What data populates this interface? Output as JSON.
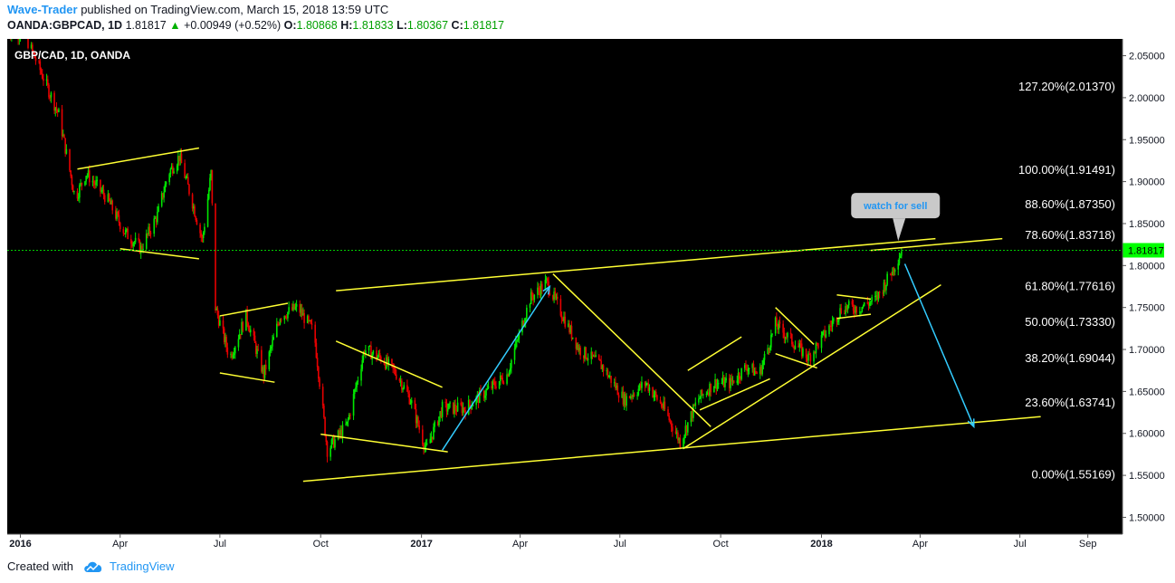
{
  "header": {
    "author": "Wave-Trader",
    "published_text": "published on TradingView.com, March 15, 2018 13:59 UTC",
    "symbol": "OANDA:GBPCAD, 1D",
    "last": "1.81817",
    "change": "+0.00949 (+0.52%)",
    "o_label": "O:",
    "o": "1.80868",
    "h_label": "H:",
    "h": "1.81833",
    "l_label": "L:",
    "l": "1.80367",
    "c_label": "C:",
    "c": "1.81817"
  },
  "chart_title": "GBP/CAD, 1D, OANDA",
  "footer": {
    "created_with": "Created with",
    "brand": "TradingView"
  },
  "colors": {
    "background": "#000000",
    "up": "#00e600",
    "down": "#e60000",
    "trendline": "#ffff33",
    "arrow": "#33ccff",
    "price_tag": "#00ff00"
  },
  "chart_data": {
    "type": "candlestick",
    "title": "GBP/CAD, 1D, OANDA",
    "y_ticks": [
      "2.05000",
      "2.00000",
      "1.95000",
      "1.90000",
      "1.85000",
      "1.80000",
      "1.75000",
      "1.70000",
      "1.65000",
      "1.60000",
      "1.55000",
      "1.50000"
    ],
    "ylim": [
      1.48,
      2.07
    ],
    "x_ticks": [
      {
        "label": "2016",
        "date": "2016-01-01",
        "bold": true
      },
      {
        "label": "Apr",
        "date": "2016-04-01"
      },
      {
        "label": "Jul",
        "date": "2016-07-01"
      },
      {
        "label": "Oct",
        "date": "2016-10-01"
      },
      {
        "label": "2017",
        "date": "2017-01-01",
        "bold": true
      },
      {
        "label": "Apr",
        "date": "2017-04-01"
      },
      {
        "label": "Jul",
        "date": "2017-07-01"
      },
      {
        "label": "Oct",
        "date": "2017-10-01"
      },
      {
        "label": "2018",
        "date": "2018-01-01",
        "bold": true
      },
      {
        "label": "Apr",
        "date": "2018-04-01"
      },
      {
        "label": "Jul",
        "date": "2018-07-01"
      },
      {
        "label": "Sep",
        "date": "2018-09-01"
      }
    ],
    "xlim": [
      "2015-12-20",
      "2018-10-01"
    ],
    "last_price": {
      "value": 1.81817,
      "label": "1.81817"
    },
    "fib_levels": [
      {
        "label": "127.20%(2.01370)",
        "value": 2.0137
      },
      {
        "label": "100.00%(1.91491)",
        "value": 1.91491
      },
      {
        "label": "88.60%(1.87350)",
        "value": 1.8735
      },
      {
        "label": "78.60%(1.83718)",
        "value": 1.83718
      },
      {
        "label": "61.80%(1.77616)",
        "value": 1.77616
      },
      {
        "label": "50.00%(1.73330)",
        "value": 1.7333
      },
      {
        "label": "38.20%(1.69044)",
        "value": 1.69044
      },
      {
        "label": "23.60%(1.63741)",
        "value": 1.63741
      },
      {
        "label": "0.00%(1.55169)",
        "value": 1.55169
      }
    ],
    "price_path": [
      [
        "2015-12-20",
        2.08
      ],
      [
        "2016-01-05",
        2.075
      ],
      [
        "2016-01-20",
        2.03
      ],
      [
        "2016-02-05",
        1.98
      ],
      [
        "2016-02-20",
        1.88
      ],
      [
        "2016-03-01",
        1.91
      ],
      [
        "2016-03-20",
        1.88
      ],
      [
        "2016-04-05",
        1.84
      ],
      [
        "2016-04-20",
        1.82
      ],
      [
        "2016-05-05",
        1.86
      ],
      [
        "2016-05-15",
        1.91
      ],
      [
        "2016-05-25",
        1.93
      ],
      [
        "2016-06-05",
        1.88
      ],
      [
        "2016-06-15",
        1.83
      ],
      [
        "2016-06-23",
        1.91
      ],
      [
        "2016-06-27",
        1.75
      ],
      [
        "2016-07-10",
        1.69
      ],
      [
        "2016-07-25",
        1.74
      ],
      [
        "2016-08-10",
        1.67
      ],
      [
        "2016-08-25",
        1.74
      ],
      [
        "2016-09-10",
        1.75
      ],
      [
        "2016-09-25",
        1.72
      ],
      [
        "2016-10-07",
        1.58
      ],
      [
        "2016-10-25",
        1.61
      ],
      [
        "2016-11-10",
        1.7
      ],
      [
        "2016-11-25",
        1.69
      ],
      [
        "2016-12-10",
        1.67
      ],
      [
        "2016-12-22",
        1.64
      ],
      [
        "2017-01-05",
        1.58
      ],
      [
        "2017-01-20",
        1.63
      ],
      [
        "2017-02-10",
        1.63
      ],
      [
        "2017-03-01",
        1.65
      ],
      [
        "2017-03-20",
        1.67
      ],
      [
        "2017-04-10",
        1.76
      ],
      [
        "2017-04-25",
        1.78
      ],
      [
        "2017-05-10",
        1.74
      ],
      [
        "2017-05-25",
        1.7
      ],
      [
        "2017-06-15",
        1.68
      ],
      [
        "2017-07-05",
        1.64
      ],
      [
        "2017-07-25",
        1.66
      ],
      [
        "2017-08-10",
        1.63
      ],
      [
        "2017-08-25",
        1.59
      ],
      [
        "2017-09-10",
        1.64
      ],
      [
        "2017-09-25",
        1.66
      ],
      [
        "2017-10-10",
        1.66
      ],
      [
        "2017-10-25",
        1.68
      ],
      [
        "2017-11-05",
        1.67
      ],
      [
        "2017-11-20",
        1.73
      ],
      [
        "2017-12-05",
        1.71
      ],
      [
        "2017-12-20",
        1.69
      ],
      [
        "2018-01-05",
        1.72
      ],
      [
        "2018-01-20",
        1.75
      ],
      [
        "2018-02-05",
        1.75
      ],
      [
        "2018-02-20",
        1.76
      ],
      [
        "2018-03-05",
        1.79
      ],
      [
        "2018-03-15",
        1.818
      ]
    ],
    "trendlines": [
      {
        "from": [
          "2016-02-22",
          1.915
        ],
        "to": [
          "2016-06-12",
          1.94
        ]
      },
      {
        "from": [
          "2016-04-01",
          1.82
        ],
        "to": [
          "2016-06-12",
          1.808
        ]
      },
      {
        "from": [
          "2016-07-01",
          1.74
        ],
        "to": [
          "2016-09-01",
          1.755
        ]
      },
      {
        "from": [
          "2016-07-01",
          1.672
        ],
        "to": [
          "2016-08-20",
          1.661
        ]
      },
      {
        "from": [
          "2016-10-01",
          1.599
        ],
        "to": [
          "2017-01-25",
          1.578
        ]
      },
      {
        "from": [
          "2016-10-15",
          1.77
        ],
        "to": [
          "2018-04-15",
          1.832
        ]
      },
      {
        "from": [
          "2016-10-15",
          1.71
        ],
        "to": [
          "2017-01-20",
          1.655
        ]
      },
      {
        "from": [
          "2016-09-15",
          1.543
        ],
        "to": [
          "2018-07-20",
          1.62
        ]
      },
      {
        "from": [
          "2017-05-01",
          1.79
        ],
        "to": [
          "2017-09-22",
          1.608
        ]
      },
      {
        "from": [
          "2017-08-28",
          1.582
        ],
        "to": [
          "2018-04-20",
          1.777
        ]
      },
      {
        "from": [
          "2017-09-01",
          1.675
        ],
        "to": [
          "2017-10-20",
          1.715
        ]
      },
      {
        "from": [
          "2017-09-12",
          1.628
        ],
        "to": [
          "2017-11-15",
          1.665
        ]
      },
      {
        "from": [
          "2017-11-20",
          1.75
        ],
        "to": [
          "2017-12-25",
          1.706
        ]
      },
      {
        "from": [
          "2017-11-20",
          1.695
        ],
        "to": [
          "2017-12-28",
          1.678
        ]
      },
      {
        "from": [
          "2018-01-15",
          1.765
        ],
        "to": [
          "2018-02-15",
          1.76
        ]
      },
      {
        "from": [
          "2018-01-15",
          1.737
        ],
        "to": [
          "2018-02-15",
          1.742
        ]
      },
      {
        "from": [
          "2018-02-15",
          1.818
        ],
        "to": [
          "2018-06-15",
          1.832
        ]
      }
    ],
    "arrows": [
      {
        "from": [
          "2017-01-20",
          1.58
        ],
        "to": [
          "2017-04-28",
          1.775
        ]
      },
      {
        "from": [
          "2018-03-18",
          1.802
        ],
        "to": [
          "2018-05-20",
          1.608
        ]
      }
    ],
    "callout": {
      "text": "watch for sell",
      "anchor": [
        "2018-03-12",
        1.825
      ]
    }
  }
}
